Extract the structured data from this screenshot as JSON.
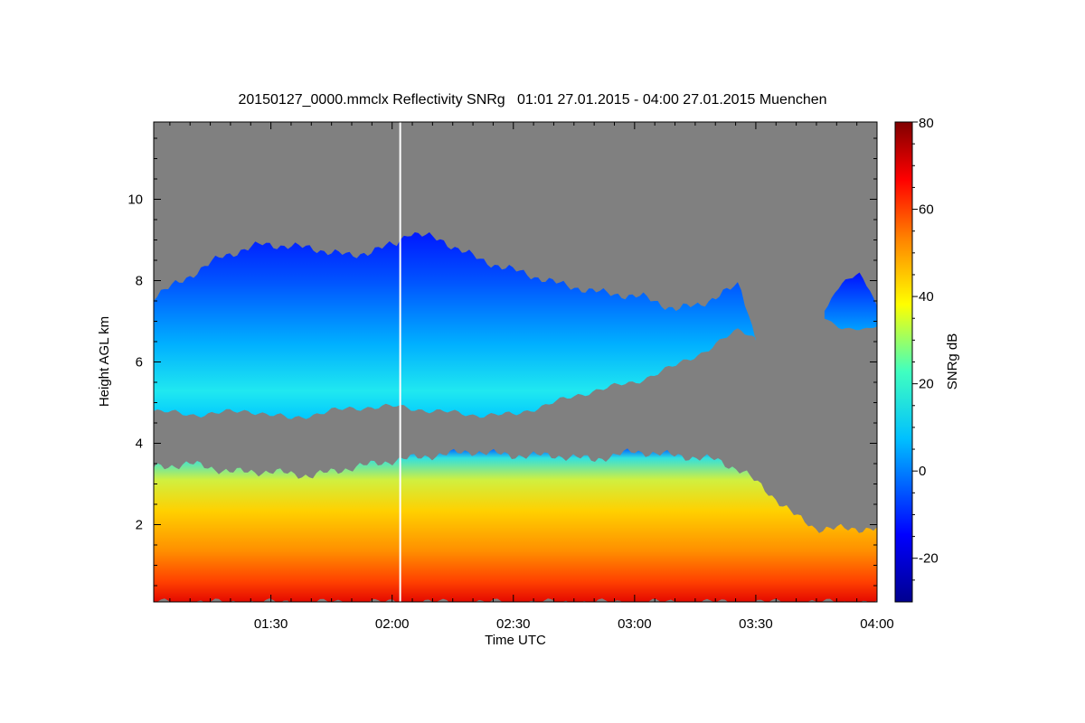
{
  "chart_data": {
    "type": "heatmap",
    "title": "20150127_0000.mmclx Reflectivity SNRg   01:01 27.01.2015 - 04:00 27.01.2015 Muenchen",
    "xlabel": "Time UTC",
    "ylabel": "Height AGL km",
    "xlim_minutes": [
      61,
      240
    ],
    "ylim": [
      0.1,
      11.9
    ],
    "x_ticks": [
      {
        "label": "01:30",
        "minutes": 90
      },
      {
        "label": "02:00",
        "minutes": 120
      },
      {
        "label": "02:30",
        "minutes": 150
      },
      {
        "label": "03:00",
        "minutes": 180
      },
      {
        "label": "03:30",
        "minutes": 210
      },
      {
        "label": "04:00",
        "minutes": 240
      }
    ],
    "y_ticks": [
      {
        "label": "2",
        "value": 2
      },
      {
        "label": "4",
        "value": 4
      },
      {
        "label": "6",
        "value": 6
      },
      {
        "label": "8",
        "value": 8
      },
      {
        "label": "10",
        "value": 10
      }
    ],
    "colorbar": {
      "label": "SNRg dB",
      "min": -30,
      "max": 80,
      "ticks": [
        {
          "label": "-20",
          "value": -20
        },
        {
          "label": "0",
          "value": 0
        },
        {
          "label": "20",
          "value": 20
        },
        {
          "label": "40",
          "value": 40
        },
        {
          "label": "60",
          "value": 60
        },
        {
          "label": "80",
          "value": 80
        }
      ],
      "colors": [
        "#00008f",
        "#0000ff",
        "#00c0ff",
        "#40ffc0",
        "#ffff00",
        "#ff8000",
        "#ff0000",
        "#800000"
      ]
    },
    "background_color": "#808080",
    "marker_line_minutes": 122,
    "upper_cloud_layer": {
      "description": "ice cloud layer",
      "snr_range": [
        -10,
        20
      ],
      "top_km": [
        [
          61,
          7.6
        ],
        [
          68,
          8.0
        ],
        [
          78,
          8.6
        ],
        [
          88,
          8.9
        ],
        [
          100,
          8.8
        ],
        [
          110,
          8.6
        ],
        [
          121,
          8.9
        ],
        [
          124,
          9.2
        ],
        [
          132,
          9.0
        ],
        [
          142,
          8.5
        ],
        [
          152,
          8.2
        ],
        [
          162,
          7.9
        ],
        [
          172,
          7.7
        ],
        [
          182,
          7.6
        ],
        [
          190,
          7.3
        ],
        [
          196,
          7.4
        ],
        [
          202,
          7.7
        ],
        [
          206,
          7.9
        ],
        [
          210,
          6.6
        ]
      ],
      "base_km": [
        [
          61,
          4.8
        ],
        [
          70,
          4.7
        ],
        [
          85,
          4.8
        ],
        [
          95,
          4.6
        ],
        [
          105,
          4.8
        ],
        [
          115,
          4.9
        ],
        [
          121,
          4.9
        ],
        [
          130,
          4.8
        ],
        [
          140,
          4.7
        ],
        [
          150,
          4.7
        ],
        [
          160,
          5.0
        ],
        [
          170,
          5.3
        ],
        [
          180,
          5.5
        ],
        [
          190,
          5.9
        ],
        [
          198,
          6.3
        ],
        [
          206,
          6.8
        ],
        [
          210,
          6.6
        ]
      ]
    },
    "isolated_cloud": {
      "snr_range": [
        -15,
        0
      ],
      "top_km": [
        [
          227,
          7.3
        ],
        [
          231,
          7.9
        ],
        [
          236,
          8.2
        ],
        [
          240,
          7.4
        ]
      ],
      "base_km": [
        [
          227,
          7.1
        ],
        [
          231,
          6.8
        ],
        [
          236,
          6.8
        ],
        [
          240,
          6.9
        ]
      ]
    },
    "lower_precip_layer": {
      "description": "precipitation below melting layer",
      "snr_range": [
        10,
        65
      ],
      "top_km": [
        [
          61,
          3.4
        ],
        [
          70,
          3.5
        ],
        [
          80,
          3.3
        ],
        [
          90,
          3.3
        ],
        [
          100,
          3.2
        ],
        [
          110,
          3.4
        ],
        [
          122,
          3.6
        ],
        [
          130,
          3.7
        ],
        [
          140,
          3.8
        ],
        [
          150,
          3.7
        ],
        [
          160,
          3.7
        ],
        [
          170,
          3.6
        ],
        [
          180,
          3.8
        ],
        [
          190,
          3.7
        ],
        [
          200,
          3.6
        ],
        [
          207,
          3.3
        ],
        [
          213,
          2.8
        ],
        [
          220,
          2.2
        ],
        [
          225,
          1.9
        ],
        [
          240,
          1.9
        ]
      ],
      "base_km": [
        [
          61,
          0.1
        ],
        [
          240,
          0.1
        ]
      ]
    }
  }
}
